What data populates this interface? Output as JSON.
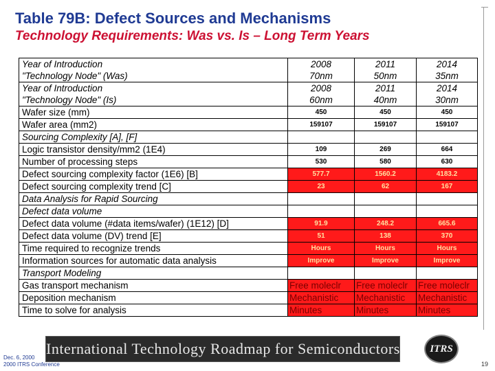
{
  "title": "Table 79B: Defect Sources and Mechanisms",
  "subtitle": "Technology Requirements: Was vs. Is – Long Term Years",
  "table": {
    "rows": [
      {
        "label": "Year of Introduction",
        "values": [
          "2008",
          "2011",
          "2014"
        ],
        "style": "val",
        "block": "top",
        "italic_label": true
      },
      {
        "label": "\"Technology Node\" (Was)",
        "values": [
          "70nm",
          "50nm",
          "35nm"
        ],
        "style": "val",
        "block": "bot",
        "italic_label": true
      },
      {
        "label": "Year of Introduction",
        "values": [
          "2008",
          "2011",
          "2014"
        ],
        "style": "val",
        "block": "top",
        "italic_label": true
      },
      {
        "label": "\"Technology Node\" (Is)",
        "values": [
          "60nm",
          "40nm",
          "30nm"
        ],
        "style": "val",
        "block": "bot",
        "italic_label": true
      },
      {
        "label": "Wafer size (mm)",
        "values": [
          "450",
          "450",
          "450"
        ],
        "style": "num"
      },
      {
        "label": "Wafer area (mm2)",
        "values": [
          "159107",
          "159107",
          "159107"
        ],
        "style": "num"
      },
      {
        "label": "Sourcing Complexity   [A], [F]",
        "values": [
          "",
          "",
          ""
        ],
        "style": "num",
        "italic_label": true
      },
      {
        "label": "Logic transistor density/mm2 (1E4)",
        "values": [
          "109",
          "269",
          "664"
        ],
        "style": "num"
      },
      {
        "label": "Number of processing steps",
        "values": [
          "530",
          "580",
          "630"
        ],
        "style": "num"
      },
      {
        "label": "Defect sourcing complexity factor  (1E6)   [B]",
        "values": [
          "577.7",
          "1560.2",
          "4183.2"
        ],
        "style": "num",
        "red": true
      },
      {
        "label": "Defect sourcing complexity trend   [C]",
        "values": [
          "23",
          "62",
          "167"
        ],
        "style": "num",
        "red": true
      },
      {
        "label": "Data Analysis for Rapid Sourcing",
        "values": [
          "",
          "",
          ""
        ],
        "style": "num",
        "italic_label": true
      },
      {
        "label": "Defect data volume",
        "values": [
          "",
          "",
          ""
        ],
        "style": "num",
        "italic_label": true
      },
      {
        "label": "Defect data volume (#data items/wafer) (1E12)   [D]",
        "values": [
          "91.9",
          "248.2",
          "665.6"
        ],
        "style": "num",
        "red": true
      },
      {
        "label": "Defect data volume (DV) trend   [E]",
        "values": [
          "51",
          "138",
          "370"
        ],
        "style": "num",
        "red": true
      },
      {
        "label": "Time required to recognize trends",
        "values": [
          "Hours",
          "Hours",
          "Hours"
        ],
        "style": "num",
        "red": true
      },
      {
        "label": "Information sources for automatic data analysis",
        "values": [
          "Improve",
          "Improve",
          "Improve"
        ],
        "style": "num",
        "red": true
      },
      {
        "label": "Transport Modeling",
        "values": [
          "",
          "",
          ""
        ],
        "style": "num",
        "italic_label": true
      },
      {
        "label": "Gas transport mechanism",
        "values": [
          "Free moleclr",
          "Free moleclr",
          "Free moleclr"
        ],
        "style": "txt",
        "red": true
      },
      {
        "label": "Deposition mechanism",
        "values": [
          "Mechanistic",
          "Mechanistic",
          "Mechanistic"
        ],
        "style": "txt",
        "red": true
      },
      {
        "label": "Time to solve for analysis",
        "values": [
          "Minutes",
          "Minutes",
          "Minutes"
        ],
        "style": "txt",
        "red": true
      }
    ]
  },
  "banner": {
    "text": "International Technology Roadmap for Semiconductors"
  },
  "logo": {
    "text": "ITRS"
  },
  "footer": {
    "date": "Dec. 6, 2000",
    "conference": "2000 ITRS Conference"
  },
  "page_number": "19"
}
